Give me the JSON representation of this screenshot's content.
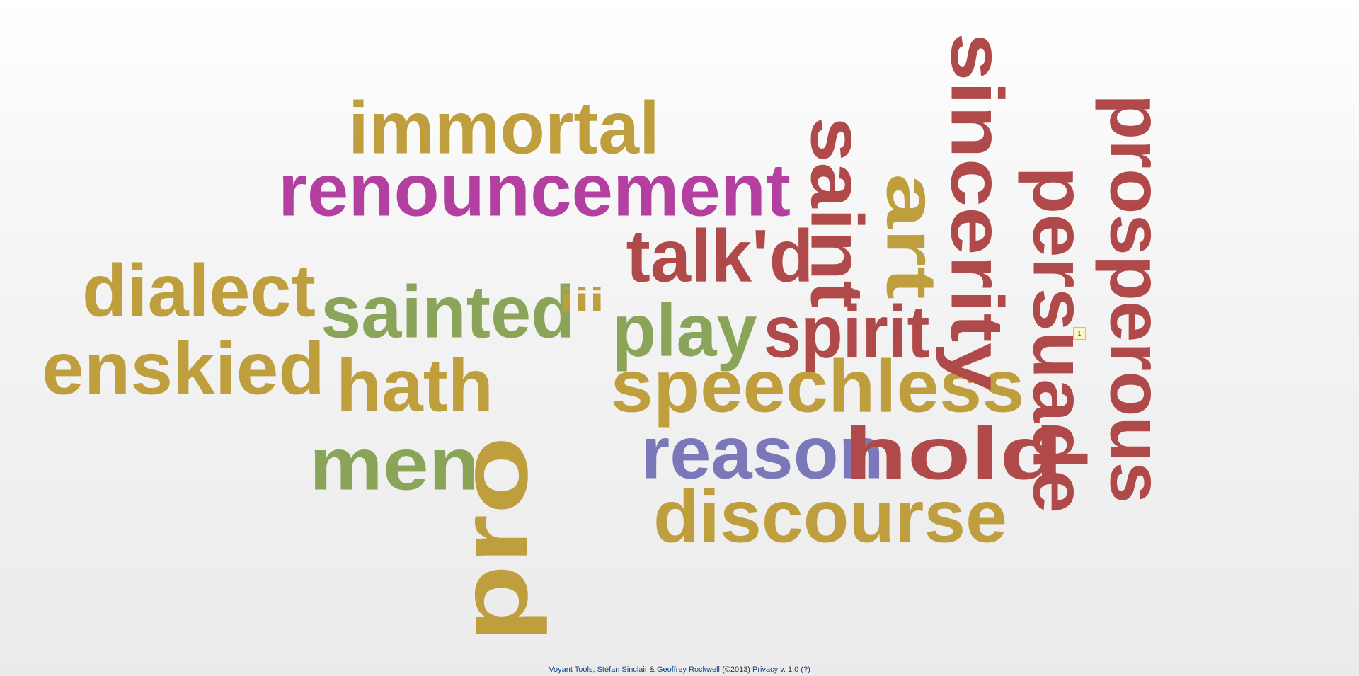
{
  "cloud": {
    "words": [
      {
        "text": "pro",
        "color": "#bf9f3d"
      },
      {
        "text": "immortal",
        "color": "#bf9f3d"
      },
      {
        "text": "renouncement",
        "color": "#b340a0"
      },
      {
        "text": "talk'd",
        "color": "#b04a4a"
      },
      {
        "text": "dialect",
        "color": "#bf9f3d"
      },
      {
        "text": "sainted",
        "color": "#8aa45a"
      },
      {
        "text": "enskied",
        "color": "#bf9f3d"
      },
      {
        "text": "hath",
        "color": "#bf9f3d"
      },
      {
        "text": "men",
        "color": "#8aa45a"
      },
      {
        "text": "play",
        "color": "#8aa45a"
      },
      {
        "text": "spirit",
        "color": "#b04a4a"
      },
      {
        "text": "speechless",
        "color": "#bf9f3d"
      },
      {
        "text": "reason",
        "color": "#7a78b8"
      },
      {
        "text": "hold",
        "color": "#b04a4a"
      },
      {
        "text": "discourse",
        "color": "#bf9f3d"
      },
      {
        "text": "saint",
        "color": "#b04a4a"
      },
      {
        "text": "art",
        "color": "#bf9f3d"
      },
      {
        "text": "sincerity",
        "color": "#b04a4a"
      },
      {
        "text": "persuade",
        "color": "#b04a4a"
      },
      {
        "text": "prosperous",
        "color": "#b04a4a"
      },
      {
        "text": "iii",
        "color": "#bf9f3d"
      }
    ],
    "tooltip_count": "1"
  },
  "footer": {
    "tools": "Voyant Tools",
    "sep1": ", ",
    "author1": "Stéfan Sinclair",
    "amp": " & ",
    "author2": "Geoffrey Rockwell",
    "copyright": " (©2013) ",
    "privacy": "Privacy",
    "version": " v. 1.0 ",
    "help": "(?)"
  }
}
